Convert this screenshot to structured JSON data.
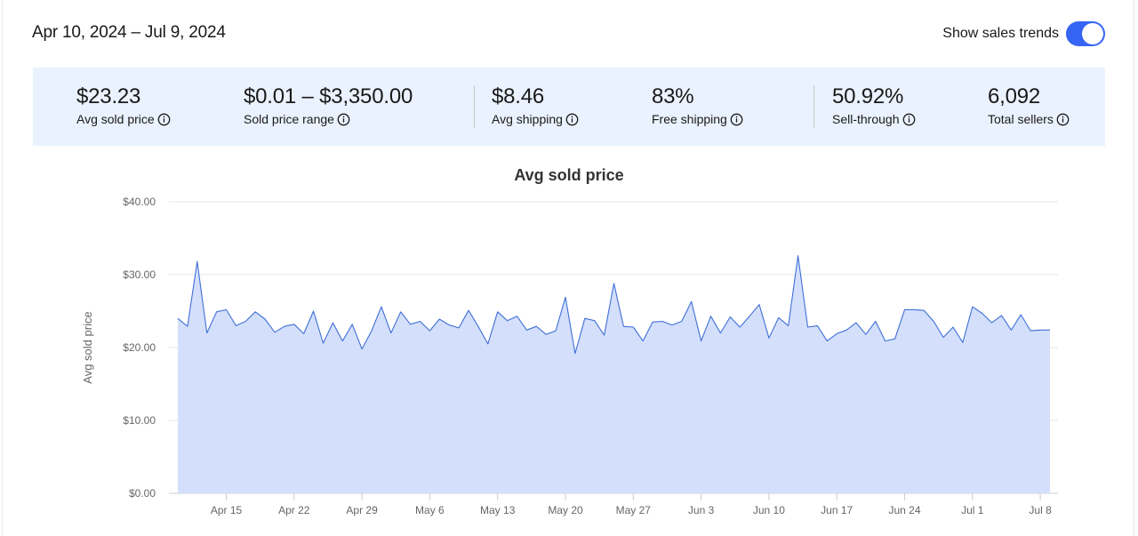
{
  "header": {
    "date_range": "Apr 10, 2024 – Jul 9, 2024",
    "toggle_label": "Show sales trends",
    "toggle_on": true
  },
  "metrics": [
    {
      "value": "$23.23",
      "label": "Avg sold price"
    },
    {
      "value": "$0.01 – $3,350.00",
      "label": "Sold price range"
    },
    {
      "value": "$8.46",
      "label": "Avg shipping"
    },
    {
      "value": "83%",
      "label": "Free shipping"
    },
    {
      "value": "50.92%",
      "label": "Sell-through"
    },
    {
      "value": "6,092",
      "label": "Total sellers"
    }
  ],
  "colors": {
    "accent": "#3665f3",
    "metrics_bg": "#eaf2ff",
    "area_fill": "#d4dffb",
    "line": "#3f6fd8"
  },
  "chart_data": {
    "type": "area",
    "title": "Avg sold price",
    "ylabel": "Avg sold price",
    "xlabel": "",
    "ylim": [
      0,
      40
    ],
    "yticks": [
      0,
      10,
      20,
      30,
      40
    ],
    "ytick_labels": [
      "$0.00",
      "$10.00",
      "$20.00",
      "$30.00",
      "$40.00"
    ],
    "x_start": "2024-04-10",
    "x_end": "2024-07-09",
    "xtick_dates": [
      "2024-04-15",
      "2024-04-22",
      "2024-04-29",
      "2024-05-06",
      "2024-05-13",
      "2024-05-20",
      "2024-05-27",
      "2024-06-03",
      "2024-06-10",
      "2024-06-17",
      "2024-06-24",
      "2024-07-01",
      "2024-07-08"
    ],
    "xtick_labels": [
      "Apr 15",
      "Apr 22",
      "Apr 29",
      "May 6",
      "May 13",
      "May 20",
      "May 27",
      "Jun 3",
      "Jun 10",
      "Jun 17",
      "Jun 24",
      "Jul 1",
      "Jul 8"
    ],
    "grid": true,
    "series": [
      {
        "values": [
          24.0,
          22.9,
          31.8,
          22.0,
          24.9,
          25.2,
          23.0,
          23.6,
          24.9,
          23.9,
          22.1,
          22.9,
          23.2,
          21.9,
          25.0,
          20.6,
          23.4,
          20.9,
          23.2,
          19.8,
          22.3,
          25.6,
          22.0,
          24.9,
          23.2,
          23.6,
          22.3,
          23.9,
          23.1,
          22.7,
          25.1,
          22.9,
          20.5,
          24.9,
          23.7,
          24.3,
          22.4,
          22.9,
          21.8,
          22.3,
          26.9,
          19.2,
          24.0,
          23.7,
          21.7,
          28.8,
          22.9,
          22.8,
          20.9,
          23.5,
          23.6,
          23.1,
          23.6,
          26.3,
          20.9,
          24.3,
          22.0,
          24.2,
          22.8,
          24.3,
          25.9,
          21.3,
          24.1,
          23.0,
          32.6,
          22.8,
          23.0,
          20.9,
          21.9,
          22.4,
          23.4,
          21.8,
          23.6,
          20.9,
          21.2,
          25.2,
          25.2,
          25.1,
          23.6,
          21.4,
          22.8,
          20.7,
          25.6,
          24.7,
          23.4,
          24.4,
          22.4,
          24.5,
          22.3,
          22.4,
          22.4
        ]
      }
    ]
  }
}
